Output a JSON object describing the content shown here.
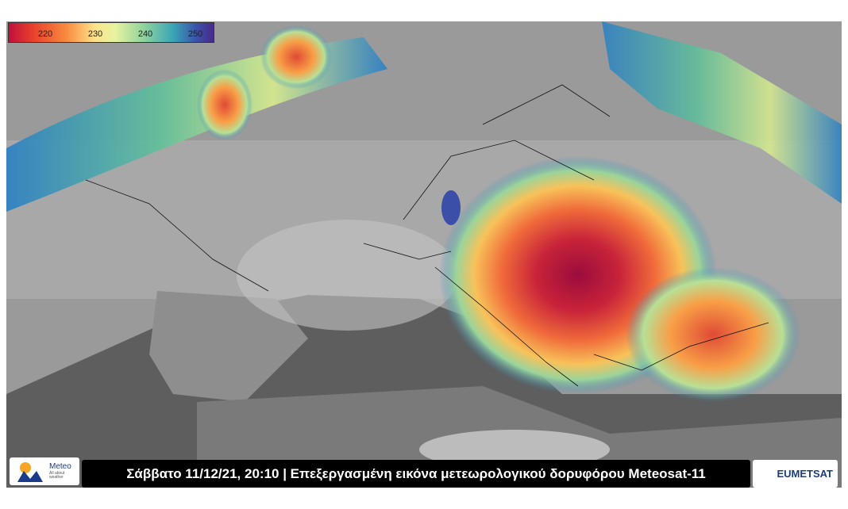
{
  "colorbar": {
    "ticks": [
      220,
      230,
      240,
      250
    ]
  },
  "caption": "Σάββατο 11/12/21, 20:10 | Επεξεργασμένη εικόνα μετεωρολογικού δορυφόρου Meteosat-11",
  "logos": {
    "meteo": {
      "name": "Meteo",
      "tagline": "All about weather"
    },
    "eumetsat": "EUMETSAT"
  }
}
